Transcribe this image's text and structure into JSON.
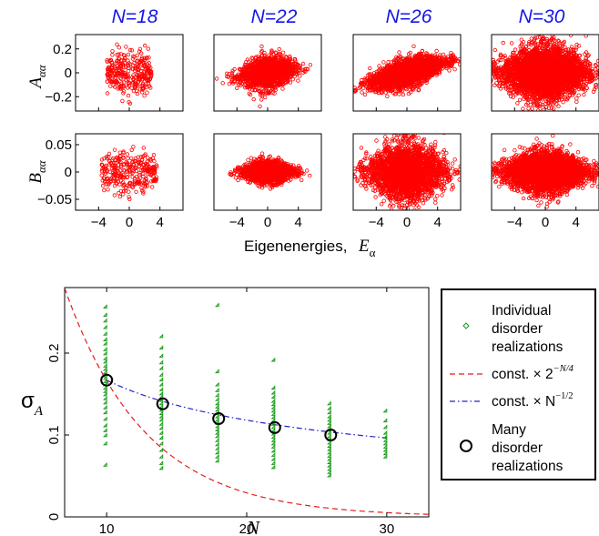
{
  "figure": {
    "top_titles": [
      "N=18",
      "N=22",
      "N=26",
      "N=30"
    ],
    "row_a_label": "A",
    "row_a_sub": "αα",
    "row_b_label": "B",
    "row_b_sub": "αα",
    "x_label_main": "Eigenenergies,",
    "x_label_symbol": "E",
    "x_label_sub": "α",
    "title_color": "#1515e6",
    "scatter_color": "#ff0000"
  },
  "chart_data": [
    {
      "type": "scatter",
      "panel": "A",
      "N": 18,
      "xlim": [
        -7,
        7
      ],
      "ylim": [
        -0.32,
        0.32
      ],
      "xticks": [
        "−4",
        "0",
        "4"
      ],
      "yticks": [
        "0.2",
        "0",
        "−0.2"
      ],
      "ytick_values": [
        0.2,
        0,
        -0.2
      ],
      "cloud": {
        "x_center": 0,
        "x_halfwidth": 2.9,
        "y_center": 0,
        "y_halfwidth": 0.24,
        "points": 300
      }
    },
    {
      "type": "scatter",
      "panel": "A",
      "N": 22,
      "xlim": [
        -7,
        7
      ],
      "ylim": [
        -0.32,
        0.32
      ],
      "xticks": [
        "−4",
        "0",
        "4"
      ],
      "cloud": {
        "x_center": 0,
        "x_halfwidth": 4.2,
        "y_center": 0,
        "y_halfwidth": 0.17,
        "points": 1500
      }
    },
    {
      "type": "scatter",
      "panel": "A",
      "N": 26,
      "xlim": [
        -7,
        7
      ],
      "ylim": [
        -0.32,
        0.32
      ],
      "xticks": [
        "−4",
        "0",
        "4"
      ],
      "cloud": {
        "x_center": 0,
        "x_halfwidth": 5.8,
        "y_center": 0,
        "y_halfwidth": 0.14,
        "points": 2500
      }
    },
    {
      "type": "scatter",
      "panel": "A",
      "N": 30,
      "xlim": [
        -7,
        7
      ],
      "ylim": [
        -0.32,
        0.32
      ],
      "xticks": [
        "−4",
        "0",
        "4"
      ],
      "cloud": {
        "x_center": 0,
        "x_halfwidth": 6.6,
        "y_center": 0,
        "y_halfwidth": 0.28,
        "points": 3500
      }
    },
    {
      "type": "scatter",
      "panel": "B",
      "N": 18,
      "xlim": [
        -7,
        7
      ],
      "ylim": [
        -0.07,
        0.07
      ],
      "xticks": [
        "−4",
        "0",
        "4"
      ],
      "yticks": [
        "0.05",
        "0",
        "−0.05"
      ],
      "ytick_values": [
        0.05,
        0,
        -0.05
      ],
      "cloud": {
        "x_center": 0,
        "x_halfwidth": 3.6,
        "y_center": 0,
        "y_halfwidth": 0.05,
        "points": 300
      }
    },
    {
      "type": "scatter",
      "panel": "B",
      "N": 22,
      "xlim": [
        -7,
        7
      ],
      "ylim": [
        -0.07,
        0.07
      ],
      "xticks": [
        "−4",
        "0",
        "4"
      ],
      "cloud": {
        "x_center": 0,
        "x_halfwidth": 4.1,
        "y_center": 0,
        "y_halfwidth": 0.025,
        "points": 1500
      }
    },
    {
      "type": "scatter",
      "panel": "B",
      "N": 26,
      "xlim": [
        -7,
        7
      ],
      "ylim": [
        -0.07,
        0.07
      ],
      "xticks": [
        "−4",
        "0",
        "4"
      ],
      "cloud": {
        "x_center": 0,
        "x_halfwidth": 6.0,
        "y_center": 0,
        "y_halfwidth": 0.065,
        "points": 2500
      }
    },
    {
      "type": "scatter",
      "panel": "B",
      "N": 30,
      "xlim": [
        -7,
        7
      ],
      "ylim": [
        -0.07,
        0.07
      ],
      "xticks": [
        "−4",
        "0",
        "4"
      ],
      "cloud": {
        "x_center": 0,
        "x_halfwidth": 6.4,
        "y_center": 0,
        "y_halfwidth": 0.045,
        "points": 3500
      }
    },
    {
      "type": "scatter",
      "panel": "sigma",
      "xlabel": "N",
      "ylabel": "σ",
      "ylabel_sub": "A",
      "xlim": [
        7,
        33
      ],
      "ylim": [
        0,
        0.28
      ],
      "xticks": [
        10,
        20,
        30
      ],
      "yticks": [
        0,
        0.1,
        0.2
      ],
      "ytick_labels": [
        "0",
        "0.1",
        "0.2"
      ],
      "individual": {
        "name": "Individual disorder realizations",
        "color": "#1a9a1a",
        "groups": [
          {
            "N": 10,
            "values": [
              0.255,
              0.245,
              0.238,
              0.23,
              0.222,
              0.215,
              0.21,
              0.203,
              0.198,
              0.192,
              0.188,
              0.183,
              0.179,
              0.175,
              0.171,
              0.168,
              0.164,
              0.16,
              0.156,
              0.152,
              0.148,
              0.143,
              0.138,
              0.132,
              0.126,
              0.118,
              0.11,
              0.104,
              0.098,
              0.088,
              0.062
            ]
          },
          {
            "N": 14,
            "values": [
              0.219,
              0.205,
              0.195,
              0.187,
              0.18,
              0.172,
              0.166,
              0.16,
              0.154,
              0.149,
              0.145,
              0.141,
              0.137,
              0.133,
              0.129,
              0.125,
              0.121,
              0.117,
              0.112,
              0.107,
              0.101,
              0.095,
              0.088,
              0.08,
              0.072,
              0.064,
              0.058
            ]
          },
          {
            "N": 18,
            "values": [
              0.257,
              0.176,
              0.16,
              0.153,
              0.147,
              0.142,
              0.137,
              0.133,
              0.129,
              0.125,
              0.121,
              0.117,
              0.113,
              0.109,
              0.105,
              0.101,
              0.097,
              0.092,
              0.087,
              0.082,
              0.077,
              0.072,
              0.067
            ]
          },
          {
            "N": 22,
            "values": [
              0.19,
              0.156,
              0.15,
              0.145,
              0.14,
              0.136,
              0.132,
              0.128,
              0.124,
              0.12,
              0.116,
              0.112,
              0.108,
              0.104,
              0.1,
              0.096,
              0.092,
              0.088,
              0.084,
              0.079,
              0.074,
              0.069,
              0.064,
              0.059
            ]
          },
          {
            "N": 26,
            "values": [
              0.137,
              0.131,
              0.126,
              0.121,
              0.117,
              0.113,
              0.109,
              0.105,
              0.101,
              0.097,
              0.093,
              0.089,
              0.085,
              0.081,
              0.077,
              0.073,
              0.069,
              0.065,
              0.061,
              0.057,
              0.053,
              0.049
            ]
          },
          {
            "N": 30,
            "values": [
              0.128,
              0.116,
              0.108,
              0.101,
              0.096,
              0.092,
              0.088,
              0.084,
              0.08,
              0.076,
              0.072
            ]
          }
        ]
      },
      "many": {
        "name": "Many disorder realizations",
        "x": [
          10,
          14,
          18,
          22,
          26
        ],
        "y": [
          0.167,
          0.138,
          0.12,
          0.109,
          0.1
        ]
      },
      "fit_exp": {
        "name": "const. × 2",
        "exponent": "−N/4",
        "color": "#e81a1a",
        "const": 0.94,
        "x_range": [
          7,
          33
        ]
      },
      "fit_pow": {
        "name": "const. × N",
        "exponent": "−1/2",
        "color": "#2323c8",
        "const": 0.528,
        "x_range": [
          10,
          30
        ]
      }
    }
  ]
}
